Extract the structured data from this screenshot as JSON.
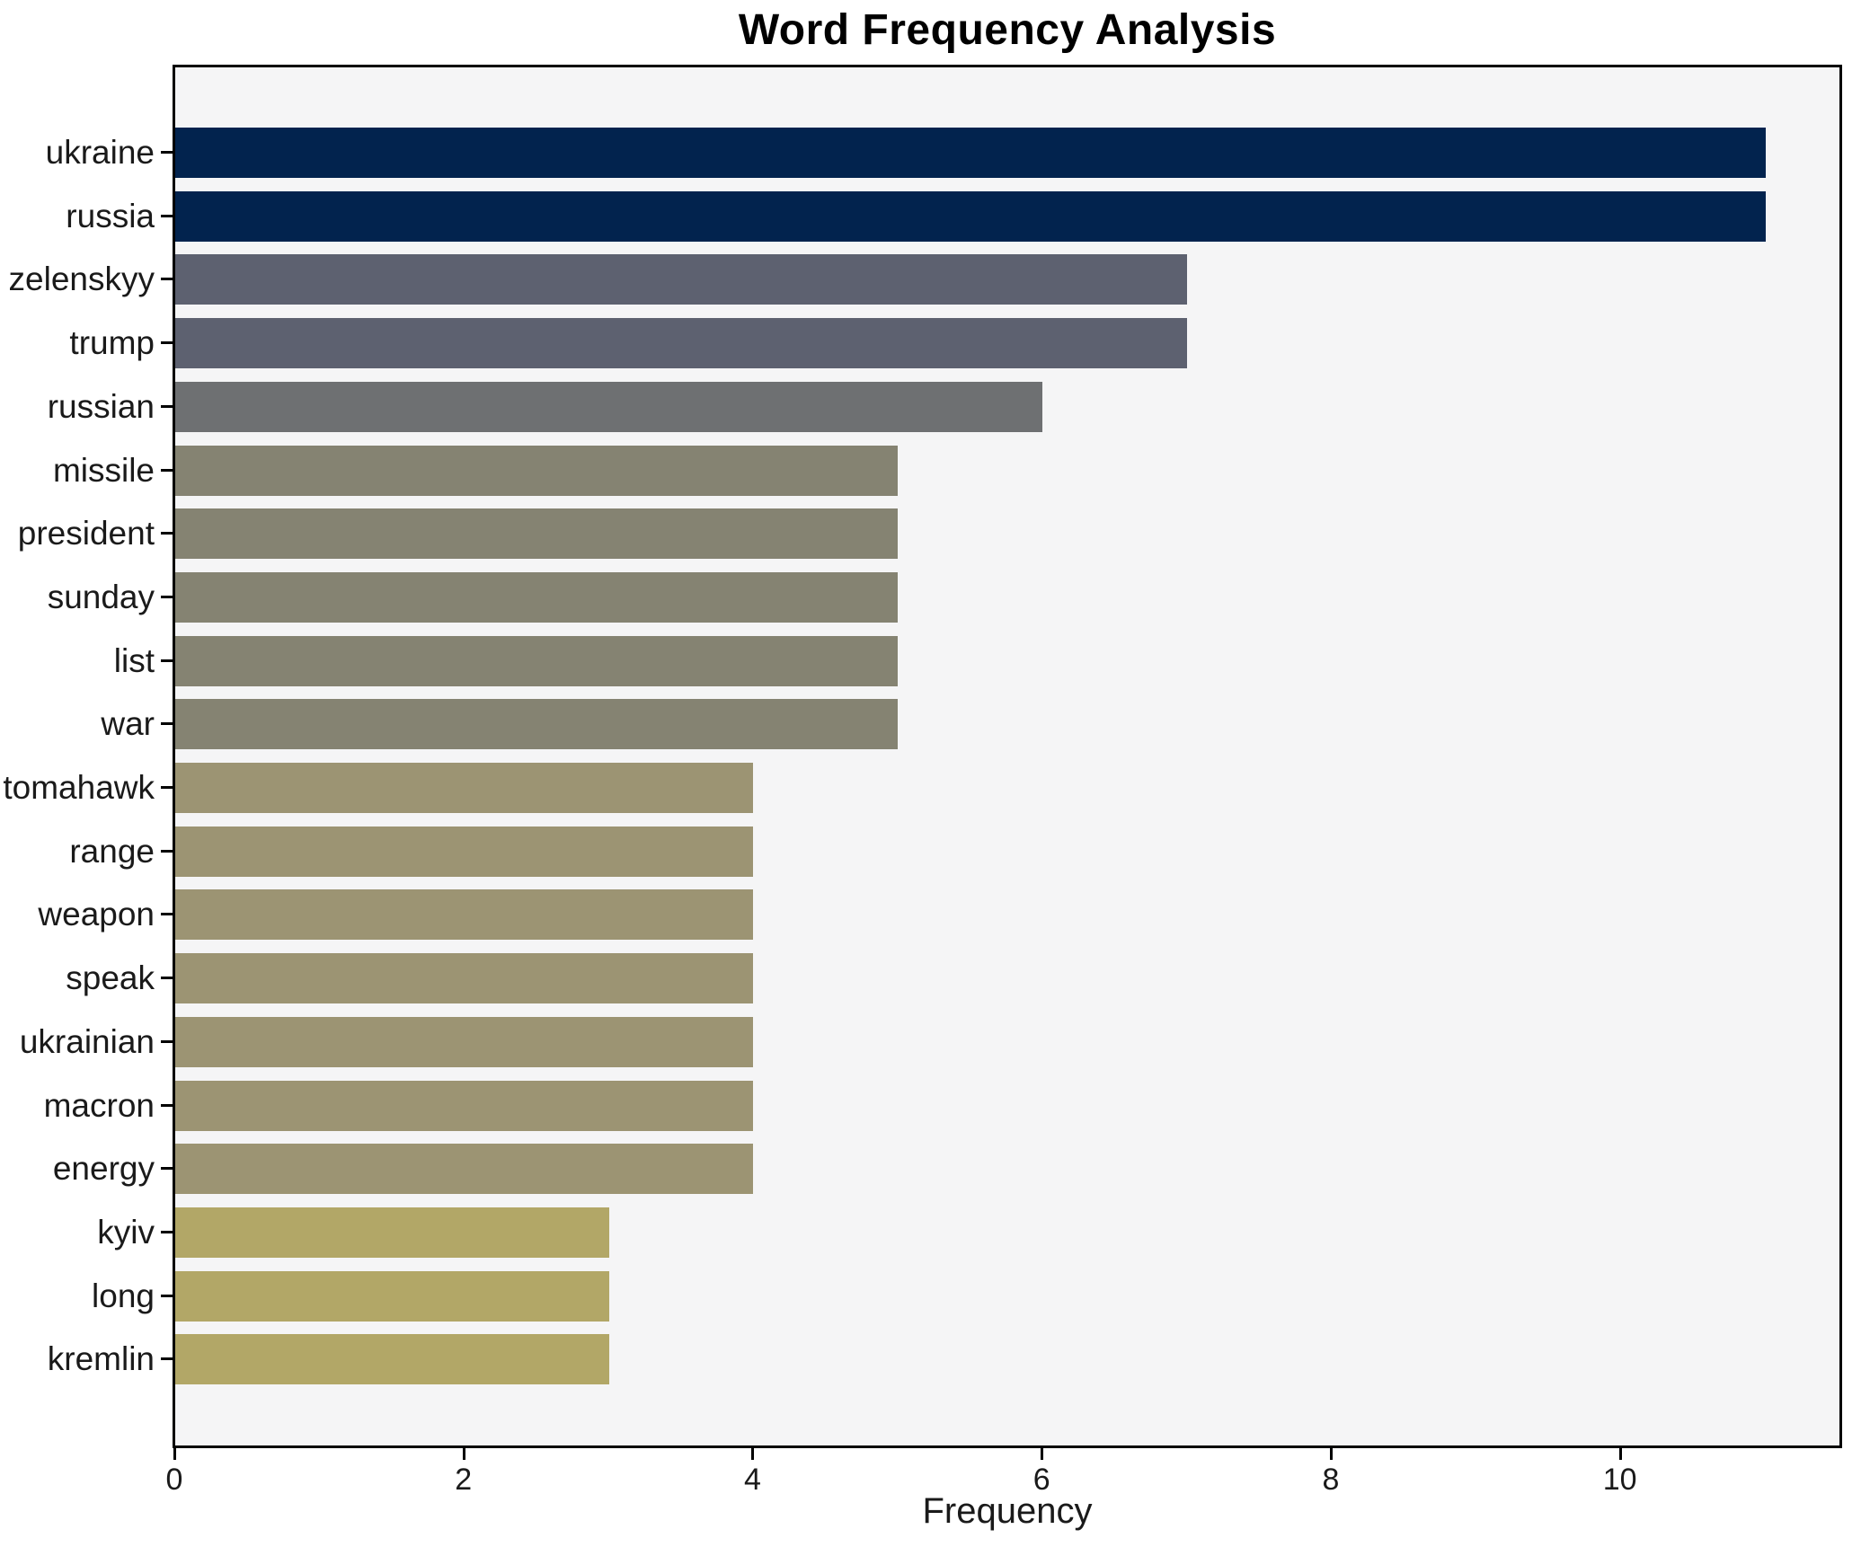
{
  "title": "Word Frequency Analysis",
  "chart_data": {
    "type": "bar",
    "orientation": "horizontal",
    "title": "Word Frequency Analysis",
    "xlabel": "Frequency",
    "ylabel": "",
    "xlim": [
      0,
      11.55
    ],
    "grid": false,
    "legend": "none",
    "x_ticks": [
      0,
      2,
      4,
      6,
      8,
      10
    ],
    "categories": [
      "ukraine",
      "russia",
      "zelenskyy",
      "trump",
      "russian",
      "missile",
      "president",
      "sunday",
      "list",
      "war",
      "tomahawk",
      "range",
      "weapon",
      "speak",
      "ukrainian",
      "macron",
      "energy",
      "kyiv",
      "long",
      "kremlin"
    ],
    "values": [
      11,
      11,
      7,
      7,
      6,
      5,
      5,
      5,
      5,
      5,
      4,
      4,
      4,
      4,
      4,
      4,
      4,
      3,
      3,
      3
    ],
    "bar_colors": [
      "#02234e",
      "#02234e",
      "#5d6170",
      "#5d6170",
      "#6e7072",
      "#858372",
      "#858372",
      "#858372",
      "#858372",
      "#858372",
      "#9c9473",
      "#9c9473",
      "#9c9473",
      "#9c9473",
      "#9c9473",
      "#9c9473",
      "#9c9473",
      "#b2a767",
      "#b2a767",
      "#b2a767"
    ]
  },
  "colors": {
    "figure_background": "#ffffff",
    "plot_background": "#f5f5f6",
    "axis": "#000000",
    "text": "#1a1a1a"
  }
}
